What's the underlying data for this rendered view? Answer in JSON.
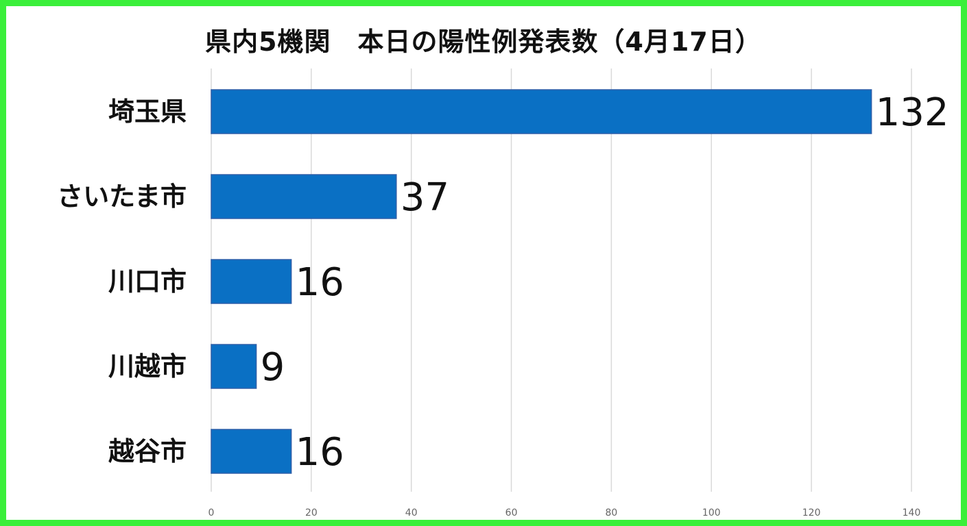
{
  "chart_data": {
    "type": "bar",
    "orientation": "horizontal",
    "title": "県内5機関　本日の陽性例発表数（4月17日）",
    "categories": [
      "埼玉県",
      "さいたま市",
      "川口市",
      "川越市",
      "越谷市"
    ],
    "values": [
      132,
      37,
      16,
      9,
      16
    ],
    "xlim": [
      0,
      140
    ],
    "x_ticks": [
      0,
      20,
      40,
      60,
      80,
      100,
      120,
      140
    ],
    "grid": "vertical",
    "data_labels": true,
    "legend": "none",
    "bar_color": "#0a70c4",
    "bar_edge_color": "#2f5fa8",
    "grid_color": "#d9d9d9",
    "frame_color": "#3aef3a"
  }
}
